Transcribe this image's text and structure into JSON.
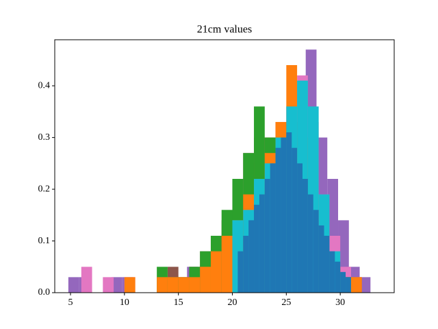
{
  "chart_data": {
    "type": "histogram",
    "title": "21cm values",
    "xlim": [
      3.54,
      35.0
    ],
    "ylim": [
      0,
      0.489
    ],
    "xticks": [
      5,
      10,
      15,
      20,
      25,
      30
    ],
    "yticks": [
      {
        "value": 0,
        "label": "0.0"
      },
      0.1,
      0.2,
      0.3,
      0.4
    ],
    "series": [
      {
        "color": "#9467bd",
        "bins": [
          4.8,
          5.8,
          6.8,
          7.8,
          8.8,
          9.8,
          10.8,
          11.8,
          12.8,
          13.8,
          14.8,
          15.8,
          16.8,
          17.8,
          18.8,
          19.8,
          20.8,
          21.8,
          22.8,
          23.8,
          24.8,
          25.8,
          26.8,
          27.8,
          28.8,
          29.8,
          30.8,
          31.8,
          32.8
        ],
        "values": [
          0.03,
          0.03,
          0,
          0,
          0.03,
          0.03,
          0,
          0,
          0,
          0,
          0.03,
          0.05,
          0.03,
          0.05,
          0.08,
          0.11,
          0.14,
          0.19,
          0.25,
          0.27,
          0.33,
          0.4,
          0.47,
          0.3,
          0.22,
          0.14,
          0.05,
          0.03
        ]
      },
      {
        "color": "#e377c2",
        "bins": [
          6,
          7,
          8,
          9,
          10,
          11,
          12,
          13,
          14,
          15,
          16,
          17,
          18,
          19,
          20,
          21,
          22,
          23,
          24,
          25,
          26,
          27,
          28,
          29,
          30,
          31,
          32,
          33
        ],
        "values": [
          0.05,
          0,
          0.03,
          0,
          0.03,
          0,
          0,
          0.03,
          0,
          0,
          0.03,
          0.05,
          0.05,
          0.08,
          0.11,
          0.14,
          0.22,
          0.25,
          0.3,
          0.36,
          0.42,
          0.33,
          0.19,
          0.11,
          0.05,
          0.03,
          0
        ]
      },
      {
        "color": "#8c564b",
        "bins": [
          14,
          15,
          16,
          17,
          18,
          19,
          20,
          21,
          22,
          23,
          24,
          25,
          26,
          27,
          28,
          29,
          30,
          31,
          32
        ],
        "values": [
          0.05,
          0.03,
          0.05,
          0.08,
          0.11,
          0.14,
          0.22,
          0.27,
          0.3,
          0.25,
          0.3,
          0.22,
          0.16,
          0.11,
          0.08,
          0.05,
          0.03,
          0.03
        ]
      },
      {
        "color": "#d62728",
        "bins": [
          17,
          18,
          19,
          20,
          21,
          22,
          23,
          24,
          25,
          26,
          27,
          28,
          29,
          30,
          31
        ],
        "values": [
          0.03,
          0.05,
          0.11,
          0.14,
          0.19,
          0.25,
          0.3,
          0.33,
          0.27,
          0.22,
          0.14,
          0.08,
          0.05,
          0.03
        ]
      },
      {
        "color": "#2ca02c",
        "bins": [
          13,
          14,
          15,
          16,
          17,
          18,
          19,
          20,
          21,
          22,
          23,
          24,
          25,
          26,
          27,
          28,
          29,
          30,
          31
        ],
        "values": [
          0.05,
          0.03,
          0.03,
          0.05,
          0.08,
          0.11,
          0.16,
          0.22,
          0.27,
          0.36,
          0.3,
          0.25,
          0.33,
          0.19,
          0.11,
          0.05,
          0.03,
          0.03
        ]
      },
      {
        "color": "#ff7f0e",
        "bins": [
          10,
          11,
          12,
          13,
          14,
          15,
          16,
          17,
          18,
          19,
          20,
          21,
          22,
          23,
          24,
          25,
          26,
          27,
          28,
          29,
          30,
          31,
          32
        ],
        "values": [
          0.03,
          0,
          0,
          0.03,
          0.03,
          0.03,
          0.03,
          0.05,
          0.08,
          0.11,
          0.14,
          0.19,
          0.22,
          0.27,
          0.33,
          0.44,
          0.3,
          0.19,
          0.11,
          0.05,
          0.03,
          0.03
        ]
      },
      {
        "color": "#17becf",
        "bins": [
          20,
          21,
          22,
          23,
          24,
          25,
          26,
          27,
          28,
          29,
          30,
          31
        ],
        "values": [
          0.14,
          0.16,
          0.22,
          0.25,
          0.3,
          0.36,
          0.41,
          0.36,
          0.19,
          0.08,
          0.03
        ]
      },
      {
        "color": "#1f77b4",
        "bins": [
          20.5,
          21,
          21.5,
          22,
          22.5,
          23,
          23.5,
          24,
          24.5,
          25,
          25.5,
          26,
          26.5,
          27,
          27.5,
          28,
          28.5,
          29,
          29.5,
          30,
          30.5,
          31
        ],
        "values": [
          0.08,
          0.11,
          0.14,
          0.17,
          0.19,
          0.22,
          0.25,
          0.28,
          0.3,
          0.31,
          0.28,
          0.25,
          0.22,
          0.19,
          0.16,
          0.13,
          0.11,
          0.08,
          0.06,
          0.04,
          0.03
        ]
      }
    ]
  }
}
